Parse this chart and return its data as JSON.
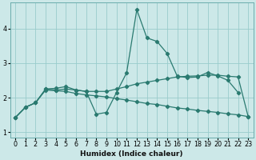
{
  "xlabel": "Humidex (Indice chaleur)",
  "bg_color": "#cce8e8",
  "grid_color": "#99cccc",
  "line_color": "#2a7a70",
  "xlim": [
    -0.5,
    23.5
  ],
  "ylim": [
    0.85,
    4.75
  ],
  "yticks": [
    1,
    2,
    3,
    4
  ],
  "xticks": [
    0,
    1,
    2,
    3,
    4,
    5,
    6,
    7,
    8,
    9,
    10,
    11,
    12,
    13,
    14,
    15,
    16,
    17,
    18,
    19,
    20,
    21,
    22,
    23
  ],
  "line1_x": [
    0,
    1,
    2,
    3,
    4,
    5,
    6,
    7,
    8,
    9,
    10,
    11,
    12,
    13,
    14,
    15,
    16,
    17,
    18,
    19,
    20,
    21,
    22
  ],
  "line1_y": [
    1.42,
    1.72,
    1.85,
    2.25,
    2.27,
    2.32,
    2.22,
    2.18,
    1.52,
    1.57,
    2.15,
    2.72,
    4.55,
    3.73,
    3.63,
    3.28,
    2.62,
    2.58,
    2.6,
    2.73,
    2.63,
    2.5,
    2.15
  ],
  "line2_x": [
    0,
    1,
    2,
    3,
    4,
    5,
    6,
    7,
    8,
    9,
    10,
    11,
    12,
    13,
    14,
    15,
    16,
    17,
    18,
    19,
    20,
    21,
    22,
    23
  ],
  "line2_y": [
    1.42,
    1.72,
    1.85,
    2.25,
    2.22,
    2.25,
    2.22,
    2.18,
    2.18,
    2.18,
    2.25,
    2.32,
    2.4,
    2.45,
    2.5,
    2.55,
    2.6,
    2.62,
    2.63,
    2.65,
    2.65,
    2.62,
    2.6,
    1.45
  ],
  "line3_x": [
    0,
    1,
    2,
    3,
    4,
    5,
    6,
    7,
    8,
    9,
    10,
    11,
    12,
    13,
    14,
    15,
    16,
    17,
    18,
    19,
    20,
    21,
    22,
    23
  ],
  "line3_y": [
    1.42,
    1.72,
    1.85,
    2.22,
    2.2,
    2.18,
    2.12,
    2.08,
    2.05,
    2.02,
    1.97,
    1.93,
    1.88,
    1.83,
    1.8,
    1.75,
    1.7,
    1.67,
    1.63,
    1.6,
    1.57,
    1.53,
    1.5,
    1.45
  ],
  "marker": "D",
  "markersize": 2.2,
  "linewidth": 0.9,
  "tick_fontsize": 5.8,
  "xlabel_fontsize": 6.5
}
